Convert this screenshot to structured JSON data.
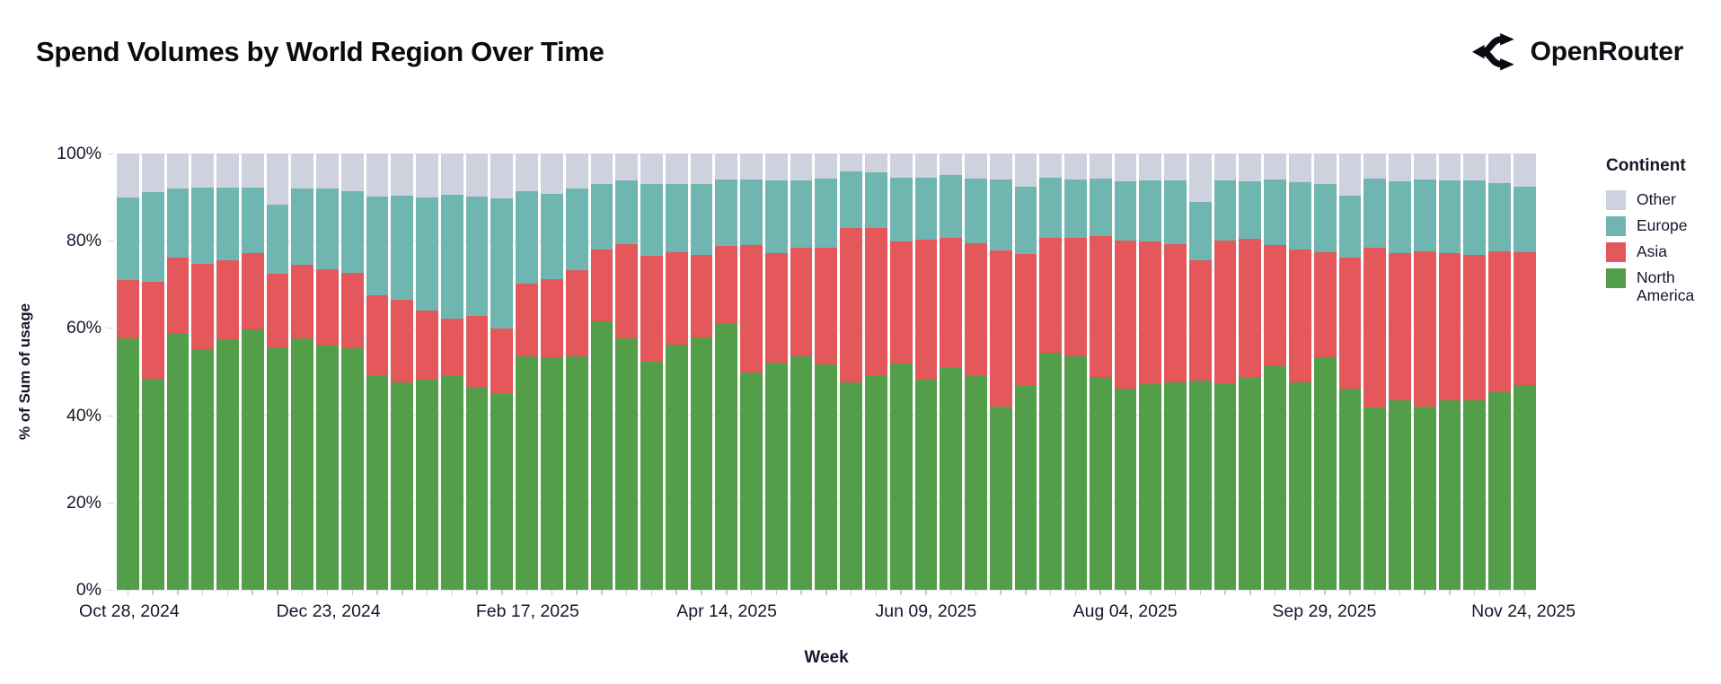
{
  "header": {
    "title": "Spend Volumes by World Region Over Time",
    "brand": "OpenRouter"
  },
  "colors": {
    "axis_text": "#16162d",
    "north_america": "#529E49",
    "asia": "#E4585B",
    "europe": "#70B6B0",
    "other": "#CED2DF"
  },
  "legend": {
    "title": "Continent",
    "items": [
      {
        "label": "Other",
        "color": "#CED2DF"
      },
      {
        "label": "Europe",
        "color": "#70B6B0"
      },
      {
        "label": "Asia",
        "color": "#E4585B"
      },
      {
        "label": "North America",
        "color": "#529E49"
      }
    ]
  },
  "chart_data": {
    "type": "bar",
    "stacked": true,
    "title": "Spend Volumes by World Region Over Time",
    "xlabel": "Week",
    "ylabel": "% of Sum of usage",
    "ylim": [
      0,
      100
    ],
    "yticks": [
      0,
      20,
      40,
      60,
      80,
      100
    ],
    "ytick_suffix": "%",
    "grid": "faint-horizontal",
    "legend_position": "right",
    "x_tick_indices": [
      0,
      8,
      16,
      24,
      32,
      40,
      48,
      56
    ],
    "x_tick_labels": [
      "Oct 28, 2024",
      "Dec 23, 2024",
      "Feb 17, 2025",
      "Apr 14, 2025",
      "Jun 09, 2025",
      "Aug 04, 2025",
      "Sep 29, 2025",
      "Nov 24, 2025"
    ],
    "categories": [
      "Oct 28, 2024",
      "Nov 04, 2024",
      "Nov 11, 2024",
      "Nov 18, 2024",
      "Nov 25, 2024",
      "Dec 02, 2024",
      "Dec 09, 2024",
      "Dec 16, 2024",
      "Dec 23, 2024",
      "Dec 30, 2024",
      "Jan 06, 2025",
      "Jan 13, 2025",
      "Jan 20, 2025",
      "Jan 27, 2025",
      "Feb 03, 2025",
      "Feb 10, 2025",
      "Feb 17, 2025",
      "Feb 24, 2025",
      "Mar 03, 2025",
      "Mar 10, 2025",
      "Mar 17, 2025",
      "Mar 24, 2025",
      "Mar 31, 2025",
      "Apr 07, 2025",
      "Apr 14, 2025",
      "Apr 21, 2025",
      "Apr 28, 2025",
      "May 05, 2025",
      "May 12, 2025",
      "May 19, 2025",
      "May 26, 2025",
      "Jun 02, 2025",
      "Jun 09, 2025",
      "Jun 16, 2025",
      "Jun 23, 2025",
      "Jun 30, 2025",
      "Jul 07, 2025",
      "Jul 14, 2025",
      "Jul 21, 2025",
      "Jul 28, 2025",
      "Aug 04, 2025",
      "Aug 11, 2025",
      "Aug 18, 2025",
      "Aug 25, 2025",
      "Sep 01, 2025",
      "Sep 08, 2025",
      "Sep 15, 2025",
      "Sep 22, 2025",
      "Sep 29, 2025",
      "Oct 06, 2025",
      "Oct 13, 2025",
      "Oct 20, 2025",
      "Oct 27, 2025",
      "Nov 03, 2025",
      "Nov 10, 2025",
      "Nov 17, 2025",
      "Nov 24, 2025"
    ],
    "series": [
      {
        "name": "North America",
        "color": "#529E49",
        "values": [
          57.7,
          48.3,
          58.7,
          55.0,
          57.5,
          59.6,
          55.5,
          57.7,
          55.9,
          55.4,
          49.2,
          47.5,
          48.2,
          49.0,
          46.6,
          44.9,
          53.6,
          53.2,
          53.6,
          61.6,
          57.7,
          52.3,
          56.1,
          57.9,
          61.0,
          49.9,
          52.0,
          53.6,
          51.7,
          47.5,
          49.2,
          51.8,
          48.2,
          51.1,
          48.9,
          42.0,
          46.8,
          54.4,
          53.6,
          48.8,
          46.0,
          47.2,
          47.5,
          47.9,
          47.3,
          48.6,
          51.3,
          47.5,
          53.2,
          46.0,
          41.7,
          43.5,
          41.9,
          43.4,
          43.5,
          45.3,
          47.0
        ]
      },
      {
        "name": "Asia",
        "color": "#E4585B",
        "values": [
          13.3,
          22.3,
          17.4,
          19.7,
          18.0,
          17.5,
          17.0,
          16.8,
          17.6,
          17.3,
          18.3,
          19.0,
          15.7,
          13.1,
          16.1,
          15.0,
          16.6,
          17.9,
          19.7,
          16.4,
          21.5,
          24.3,
          21.2,
          18.9,
          17.9,
          29.1,
          25.1,
          24.8,
          26.8,
          35.5,
          33.8,
          28.1,
          32.0,
          29.6,
          30.6,
          35.8,
          30.1,
          26.3,
          27.0,
          32.3,
          34.0,
          32.6,
          31.8,
          27.7,
          32.8,
          31.8,
          27.7,
          30.5,
          24.1,
          30.1,
          36.8,
          33.6,
          35.6,
          33.7,
          33.3,
          32.2,
          30.3
        ]
      },
      {
        "name": "Europe",
        "color": "#70B6B0",
        "values": [
          19.0,
          20.5,
          15.8,
          17.4,
          16.6,
          15.0,
          15.8,
          17.4,
          18.5,
          18.7,
          22.6,
          23.9,
          26.1,
          28.5,
          27.4,
          29.8,
          21.2,
          19.7,
          18.6,
          15.1,
          14.6,
          16.5,
          15.8,
          16.2,
          15.1,
          15.0,
          16.7,
          15.4,
          15.7,
          12.9,
          12.7,
          14.6,
          14.3,
          14.3,
          14.8,
          16.2,
          15.5,
          13.8,
          13.4,
          13.1,
          13.7,
          14.0,
          14.5,
          13.4,
          13.8,
          13.3,
          15.0,
          15.5,
          15.7,
          14.3,
          15.7,
          16.6,
          16.5,
          16.7,
          17.0,
          15.8,
          15.1
        ]
      },
      {
        "name": "Other",
        "color": "#CED2DF",
        "values": [
          10.0,
          8.9,
          8.1,
          7.9,
          7.9,
          7.9,
          11.7,
          8.1,
          8.0,
          8.6,
          9.9,
          9.6,
          10.0,
          9.4,
          9.9,
          10.3,
          8.6,
          9.2,
          8.1,
          6.9,
          6.2,
          6.9,
          6.9,
          7.0,
          6.0,
          6.0,
          6.2,
          6.2,
          5.8,
          4.1,
          4.3,
          5.5,
          5.5,
          5.0,
          5.7,
          6.0,
          7.6,
          5.5,
          6.0,
          5.8,
          6.3,
          6.2,
          6.2,
          11.0,
          6.1,
          6.3,
          6.0,
          6.5,
          7.0,
          9.6,
          5.8,
          6.3,
          6.0,
          6.2,
          6.2,
          6.7,
          7.6
        ]
      }
    ]
  }
}
